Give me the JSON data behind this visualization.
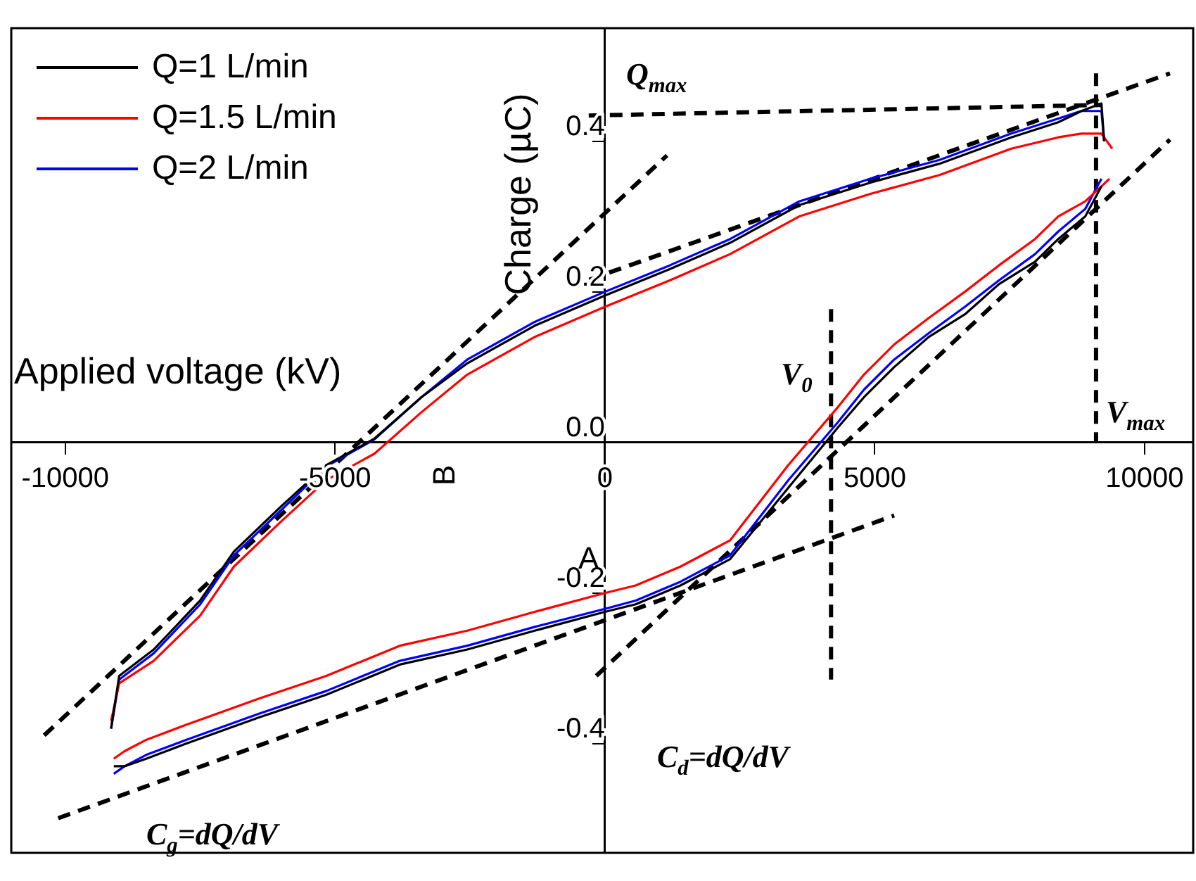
{
  "chart_data": {
    "type": "line",
    "xlabel": "Applied voltage (kV)",
    "ylabel": "Charge (µC)",
    "x": [
      -9150,
      -9000,
      -8360,
      -7500,
      -6875,
      -6000,
      -5160,
      -4270,
      -3400,
      -2550,
      -1300,
      0,
      1200,
      2320,
      3600,
      4920,
      6200,
      7530,
      8400,
      8830,
      9200,
      9250
    ],
    "series": [
      {
        "name": "Q=1 L/min",
        "color": "#000000",
        "values": [
          -0.38,
          -0.31,
          -0.275,
          -0.21,
          -0.145,
          -0.085,
          -0.03,
          0.005,
          0.06,
          0.105,
          0.155,
          0.195,
          0.23,
          0.265,
          0.315,
          0.345,
          0.37,
          0.405,
          0.425,
          0.44,
          0.45,
          0.4
        ]
      },
      {
        "name": "Q=1.5 L/min",
        "color": "#ff0000",
        "x": [
          -9150,
          -9000,
          -8360,
          -7500,
          -6875,
          -6000,
          -5160,
          -4270,
          -3400,
          -2550,
          -1300,
          0,
          1200,
          2320,
          3600,
          4920,
          6200,
          7530,
          8400,
          8830,
          9200,
          9400
        ],
        "values": [
          -0.37,
          -0.32,
          -0.29,
          -0.23,
          -0.165,
          -0.105,
          -0.05,
          -0.015,
          0.04,
          0.09,
          0.14,
          0.18,
          0.215,
          0.25,
          0.3,
          0.33,
          0.355,
          0.39,
          0.405,
          0.41,
          0.41,
          0.39
        ]
      },
      {
        "name": "Q=2 L/min",
        "color": "#0000ff",
        "values": [
          -0.38,
          -0.315,
          -0.28,
          -0.215,
          -0.15,
          -0.09,
          -0.032,
          0.004,
          0.06,
          0.11,
          0.16,
          0.2,
          0.235,
          0.27,
          0.32,
          0.35,
          0.375,
          0.41,
          0.43,
          0.44,
          0.44,
          0.4
        ]
      },
      {
        "color": "#000000",
        "x": [
          9200,
          8900,
          8400,
          7970,
          7300,
          6670,
          6000,
          5360,
          4800,
          4320,
          3400,
          2320,
          1400,
          570,
          0,
          -1300,
          -2550,
          -3800,
          -5160,
          -6400,
          -7760,
          -8500,
          -8900,
          -9100
        ],
        "values": [
          0.34,
          0.3,
          0.27,
          0.24,
          0.21,
          0.17,
          0.14,
          0.1,
          0.06,
          0.02,
          -0.06,
          -0.155,
          -0.19,
          -0.215,
          -0.225,
          -0.25,
          -0.275,
          -0.295,
          -0.335,
          -0.365,
          -0.4,
          -0.42,
          -0.43,
          -0.43
        ]
      },
      {
        "color": "#ff0000",
        "x": [
          9350,
          8900,
          8400,
          7970,
          7300,
          6670,
          6000,
          5360,
          4800,
          4320,
          3400,
          2320,
          1400,
          570,
          0,
          -1300,
          -2550,
          -3800,
          -5160,
          -6400,
          -7760,
          -8500,
          -8900,
          -9100
        ],
        "values": [
          0.35,
          0.32,
          0.3,
          0.27,
          0.235,
          0.2,
          0.165,
          0.13,
          0.09,
          0.047,
          -0.03,
          -0.13,
          -0.165,
          -0.19,
          -0.2,
          -0.225,
          -0.25,
          -0.27,
          -0.31,
          -0.34,
          -0.375,
          -0.395,
          -0.41,
          -0.42
        ]
      },
      {
        "color": "#0000ff",
        "x": [
          9200,
          8900,
          8400,
          7970,
          7300,
          6670,
          6000,
          5360,
          4800,
          4320,
          3400,
          2320,
          1400,
          570,
          0,
          -1300,
          -2550,
          -3800,
          -5160,
          -6400,
          -7760,
          -8500,
          -8900,
          -9100
        ],
        "values": [
          0.35,
          0.31,
          0.28,
          0.25,
          0.215,
          0.18,
          0.145,
          0.11,
          0.07,
          0.027,
          -0.05,
          -0.15,
          -0.185,
          -0.21,
          -0.221,
          -0.245,
          -0.27,
          -0.29,
          -0.33,
          -0.36,
          -0.395,
          -0.415,
          -0.43,
          -0.44
        ]
      },
      {
        "type": "line",
        "color": "#000000",
        "line_style": "dashed",
        "x": [
          -300,
          9200
        ],
        "values": [
          0.434,
          0.448
        ]
      },
      {
        "type": "line",
        "color": "#000000",
        "line_style": "dashed",
        "x": [
          9100,
          9100
        ],
        "values": [
          0.49,
          0
        ]
      },
      {
        "type": "line",
        "color": "#000000",
        "line_style": "dashed",
        "x": [
          4190,
          4190
        ],
        "values": [
          0.177,
          -0.315
        ]
      },
      {
        "type": "line",
        "color": "#000000",
        "line_style": "dashed",
        "x": [
          -10130,
          5360
        ],
        "values": [
          -0.499,
          -0.097
        ]
      },
      {
        "type": "line",
        "color": "#000000",
        "line_style": "dashed",
        "x": [
          -290,
          10470
        ],
        "values": [
          0.216,
          0.49
        ]
      },
      {
        "type": "line",
        "color": "#000000",
        "line_style": "dashed",
        "x": [
          -10390,
          1150
        ],
        "values": [
          -0.389,
          0.381
        ]
      },
      {
        "type": "line",
        "color": "#000000",
        "line_style": "dashed",
        "x": [
          -160,
          10470
        ],
        "values": [
          -0.31,
          0.402
        ]
      }
    ],
    "xlim": [
      -11000,
      10900
    ],
    "ylim": [
      -0.545,
      0.55
    ],
    "xticks": [
      -10000,
      -5000,
      0,
      5000,
      10000
    ],
    "yticks": [
      -0.4,
      -0.2,
      {
        "value": 0,
        "label": "0.0"
      },
      0.2,
      0.4
    ],
    "grid": false,
    "legend": "top left",
    "marker": "none",
    "line_style": "solid",
    "annotations": [
      "Q$_{max}$",
      "V$_{0}$",
      "V$_{max}$",
      "C$_{d}$=dQ/dV",
      "C$_{g}$=dQ/dV",
      "A",
      "B"
    ]
  }
}
